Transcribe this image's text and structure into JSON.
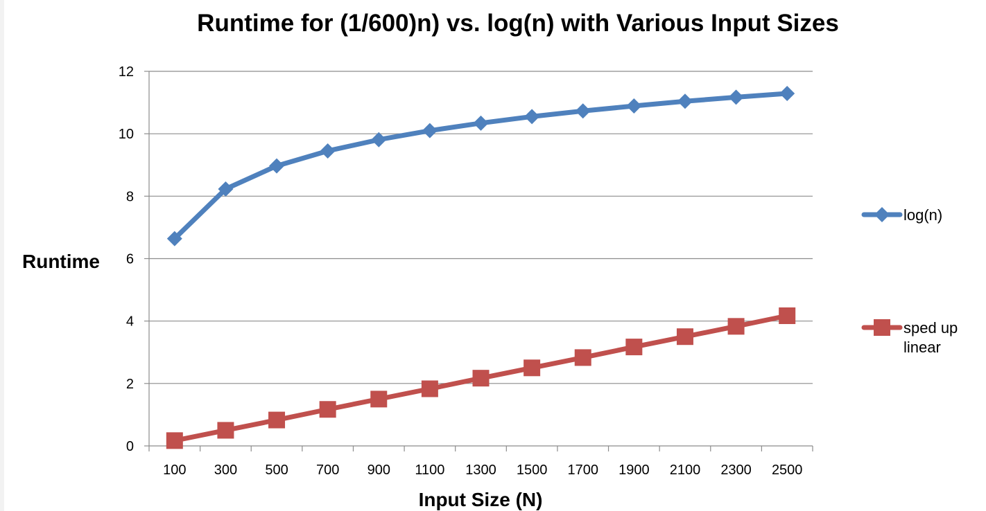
{
  "chart_data": {
    "type": "line",
    "title": "Runtime for (1/600)n) vs. log(n) with Various Input Sizes",
    "xlabel": "Input Size (N)",
    "ylabel": "Runtime",
    "categories": [
      "100",
      "300",
      "500",
      "700",
      "900",
      "1100",
      "1300",
      "1500",
      "1700",
      "1900",
      "2100",
      "2300",
      "2500"
    ],
    "ylim": [
      0,
      12
    ],
    "yticks": [
      0,
      2,
      4,
      6,
      8,
      10,
      12
    ],
    "grid": true,
    "legend_position": "right",
    "series": [
      {
        "name": "log(n)",
        "color": "#4f81bd",
        "marker": "diamond",
        "values": [
          6.64,
          8.23,
          8.97,
          9.45,
          9.81,
          10.1,
          10.34,
          10.55,
          10.73,
          10.89,
          11.04,
          11.17,
          11.29
        ]
      },
      {
        "name_lines": [
          "sped up",
          "linear"
        ],
        "color": "#c0504d",
        "marker": "square",
        "values": [
          0.17,
          0.5,
          0.83,
          1.17,
          1.5,
          1.83,
          2.17,
          2.5,
          2.83,
          3.17,
          3.5,
          3.83,
          4.17
        ]
      }
    ]
  }
}
